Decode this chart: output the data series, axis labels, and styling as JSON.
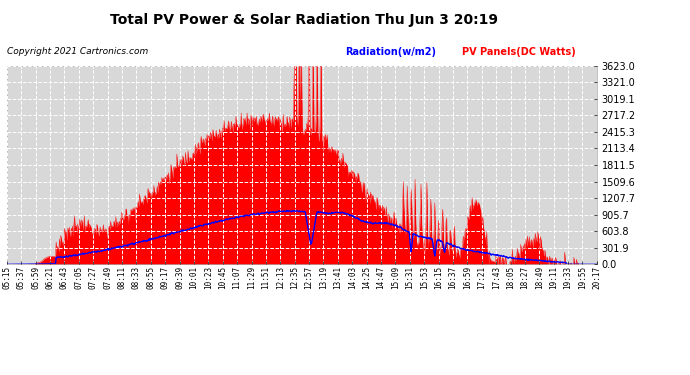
{
  "title": "Total PV Power & Solar Radiation Thu Jun 3 20:19",
  "copyright": "Copyright 2021 Cartronics.com",
  "legend_radiation": "Radiation(w/m2)",
  "legend_pv": "PV Panels(DC Watts)",
  "yticks": [
    0.0,
    301.9,
    603.8,
    905.7,
    1207.7,
    1509.6,
    1811.5,
    2113.4,
    2415.3,
    2717.2,
    3019.1,
    3321.0,
    3623.0
  ],
  "ymax": 3623.0,
  "bg_color": "#ffffff",
  "plot_bg_color": "#d8d8d8",
  "grid_color": "#ffffff",
  "red_fill": "#ff0000",
  "blue_line": "#0000ff",
  "title_color": "#000000",
  "copyright_color": "#000000",
  "xtick_labels": [
    "05:15",
    "05:37",
    "05:59",
    "06:21",
    "06:43",
    "07:05",
    "07:27",
    "07:49",
    "08:11",
    "08:33",
    "08:55",
    "09:17",
    "09:39",
    "10:01",
    "10:23",
    "10:45",
    "11:07",
    "11:29",
    "11:51",
    "12:13",
    "12:35",
    "12:57",
    "13:19",
    "13:41",
    "14:03",
    "14:25",
    "14:47",
    "15:09",
    "15:31",
    "15:53",
    "16:15",
    "16:37",
    "16:59",
    "17:21",
    "17:43",
    "18:05",
    "18:27",
    "18:49",
    "19:11",
    "19:33",
    "19:55",
    "20:17"
  ]
}
